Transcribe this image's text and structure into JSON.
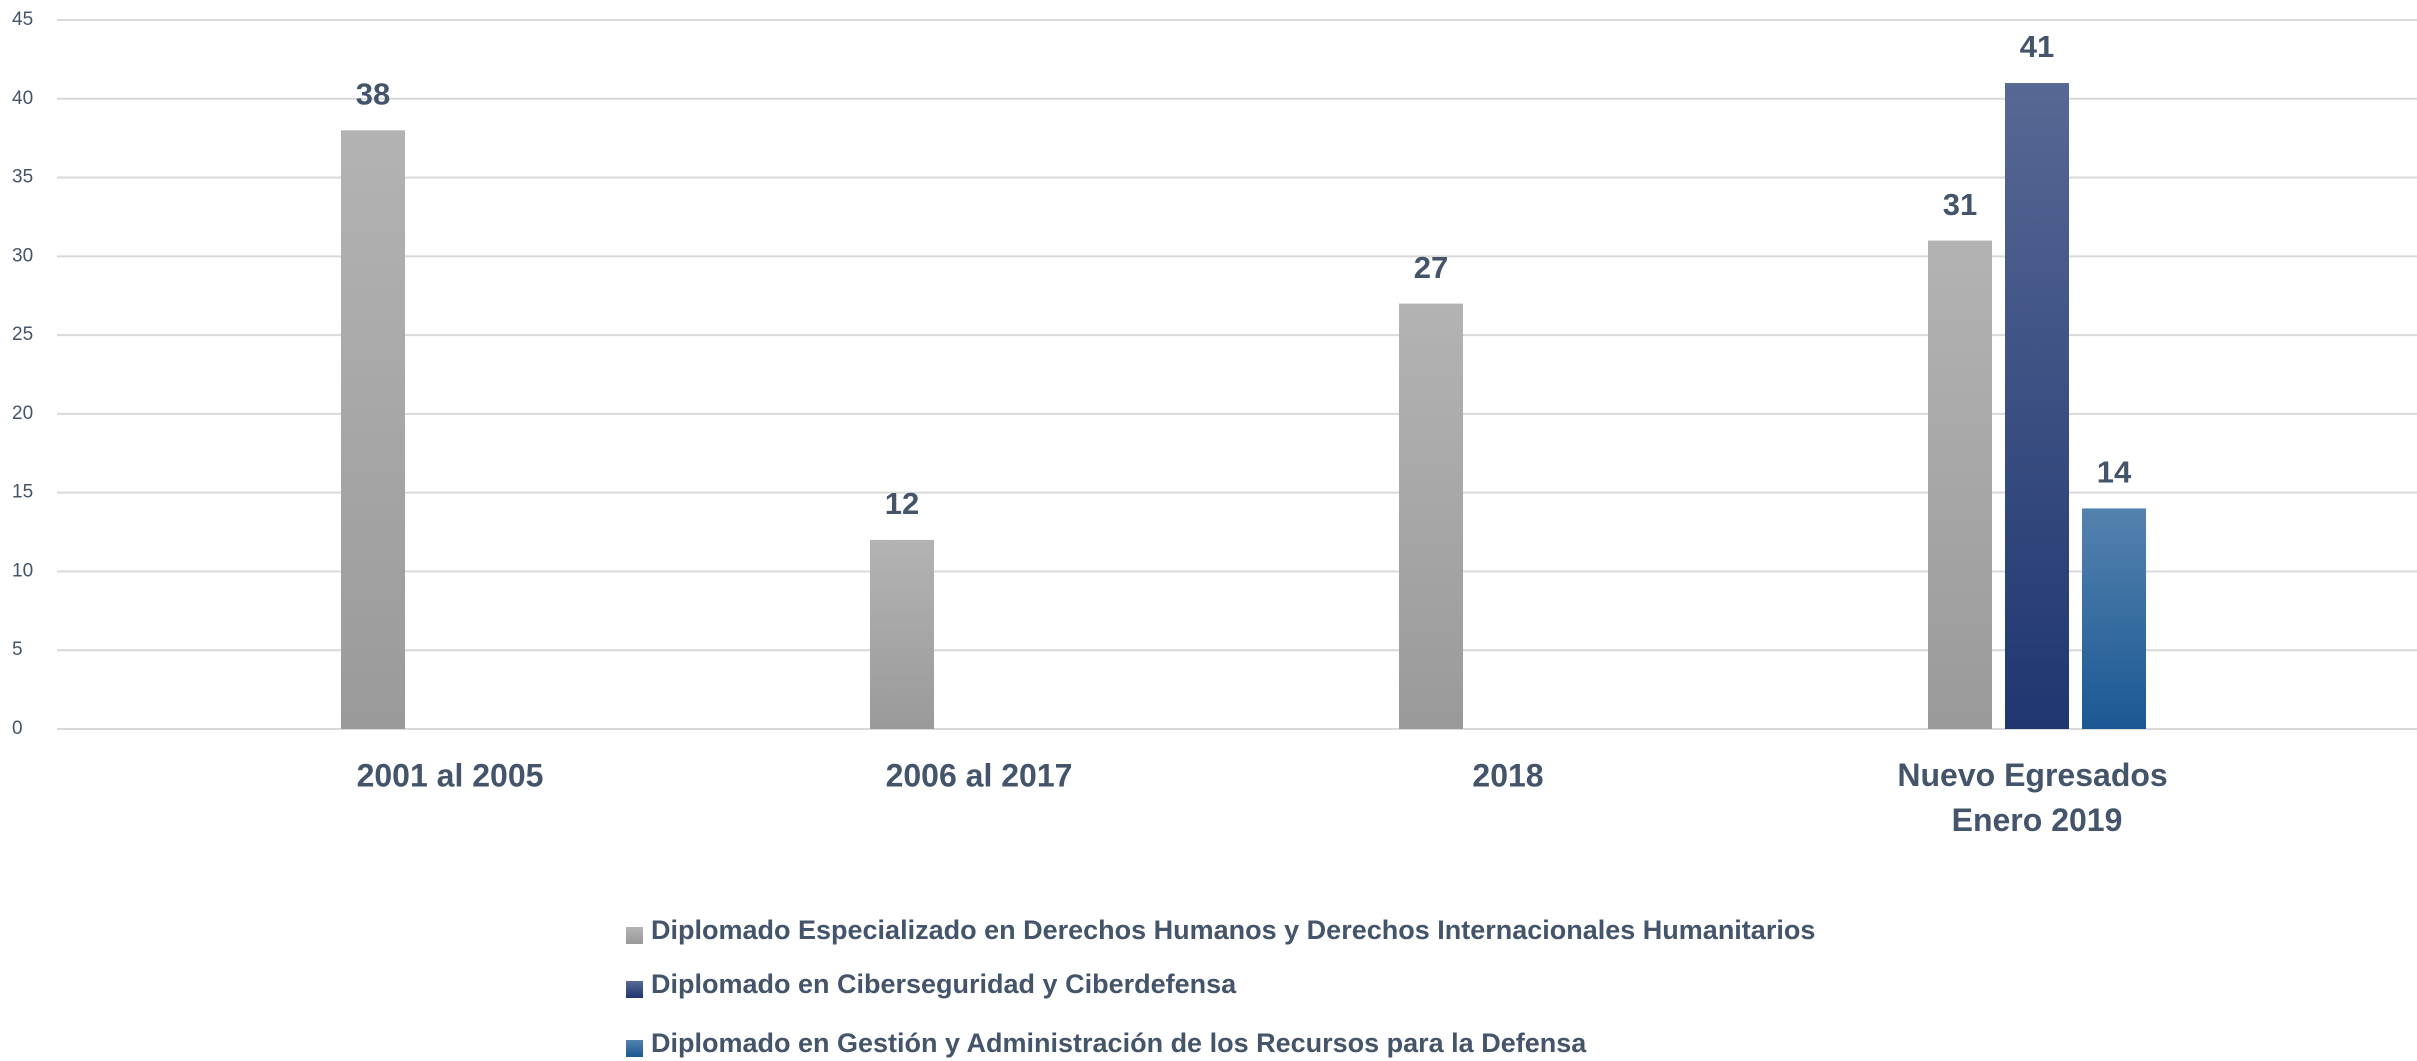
{
  "chart_data": {
    "type": "bar",
    "categories": [
      "2001 al 2005",
      "2006 al 2017",
      "2018",
      "Nuevo Egresados Enero 2019"
    ],
    "series": [
      {
        "name": "Diplomado Especializado en Derechos Humanos y Derechos Internacionales Humanitarios",
        "color": "#9a9a9a",
        "values": [
          38,
          12,
          27,
          31
        ]
      },
      {
        "name": "Diplomado en Ciberseguridad y Ciberdefensa",
        "color": "#1f3670",
        "values": [
          null,
          null,
          null,
          41
        ]
      },
      {
        "name": "Diplomado en Gestión y Administración de los Recursos para la Defensa",
        "color": "#1b5893",
        "values": [
          null,
          null,
          null,
          14
        ]
      }
    ],
    "ylim": [
      0,
      45
    ],
    "yticks": [
      0,
      5,
      10,
      15,
      20,
      25,
      30,
      35,
      40,
      45
    ],
    "grid": true,
    "legend": "bottom"
  }
}
